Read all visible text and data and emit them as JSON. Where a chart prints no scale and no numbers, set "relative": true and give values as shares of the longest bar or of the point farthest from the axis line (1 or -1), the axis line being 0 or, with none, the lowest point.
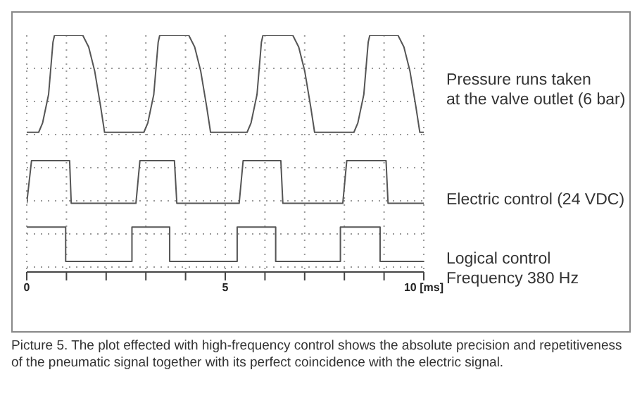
{
  "chart_data": {
    "type": "line",
    "relative": true,
    "xlim": [
      0,
      10
    ],
    "xticks": [
      0,
      {
        "value": 1,
        "label": null
      },
      {
        "value": 2,
        "label": null
      },
      {
        "value": 3,
        "label": null
      },
      {
        "value": 4,
        "label": null
      },
      5,
      {
        "value": 6,
        "label": null
      },
      {
        "value": 7,
        "label": null
      },
      {
        "value": 8,
        "label": null
      },
      {
        "value": 9,
        "label": null
      },
      {
        "value": 10,
        "label": "10 [ms]"
      }
    ],
    "grid": true,
    "marker": "none",
    "line_style": "solid",
    "tick_labels": "x",
    "series": [
      {
        "name": "Pressure runs taken\nat the valve outlet (6 bar)",
        "color": "#555555",
        "x": [
          0,
          0.3,
          0.4,
          0.55,
          0.66,
          0.7,
          1.41,
          1.56,
          1.71,
          1.86,
          1.96,
          2.95,
          3.05,
          3.2,
          3.31,
          3.35,
          4.08,
          4.23,
          4.38,
          4.53,
          4.63,
          5.55,
          5.65,
          5.8,
          5.91,
          5.95,
          6.7,
          6.85,
          7.0,
          7.15,
          7.25,
          8.24,
          8.34,
          8.49,
          8.6,
          8.64,
          9.35,
          9.5,
          9.65,
          9.8,
          9.9,
          10
        ],
        "values": [
          0.59,
          0.59,
          0.63,
          0.75,
          0.97,
          1,
          1,
          0.95,
          0.85,
          0.7,
          0.59,
          0.59,
          0.63,
          0.75,
          0.97,
          1,
          1,
          0.95,
          0.85,
          0.7,
          0.59,
          0.59,
          0.63,
          0.75,
          0.97,
          1,
          1,
          0.95,
          0.85,
          0.7,
          0.59,
          0.59,
          0.63,
          0.75,
          0.97,
          1,
          1,
          0.95,
          0.85,
          0.7,
          0.59,
          0.59
        ]
      },
      {
        "name": "Electric control (24 VDC)",
        "color": "#555555",
        "x": [
          0,
          0.12,
          1.08,
          1.12,
          2.75,
          2.85,
          3.72,
          3.78,
          5.35,
          5.45,
          6.4,
          6.45,
          7.96,
          8.06,
          9.05,
          9.1,
          10
        ],
        "values": [
          0.29,
          0.47,
          0.47,
          0.29,
          0.29,
          0.47,
          0.47,
          0.29,
          0.29,
          0.47,
          0.47,
          0.29,
          0.29,
          0.47,
          0.47,
          0.29,
          0.29
        ]
      },
      {
        "name": "Logical control\nFrequency 380 Hz",
        "color": "#555555",
        "x": [
          0,
          0.98,
          0.98,
          2.65,
          2.65,
          3.6,
          3.6,
          5.3,
          5.3,
          6.27,
          6.27,
          7.9,
          7.9,
          8.9,
          8.9,
          10
        ],
        "values": [
          0.19,
          0.19,
          0.045,
          0.045,
          0.19,
          0.19,
          0.045,
          0.045,
          0.19,
          0.19,
          0.045,
          0.045,
          0.19,
          0.19,
          0.045,
          0.045
        ]
      }
    ],
    "annotations": [
      "Picture 5. The plot effected with high-frequency control shows the absolute precision and repetitiveness of the pneumatic signal together with its perfect coincidence with the electric signal."
    ]
  }
}
